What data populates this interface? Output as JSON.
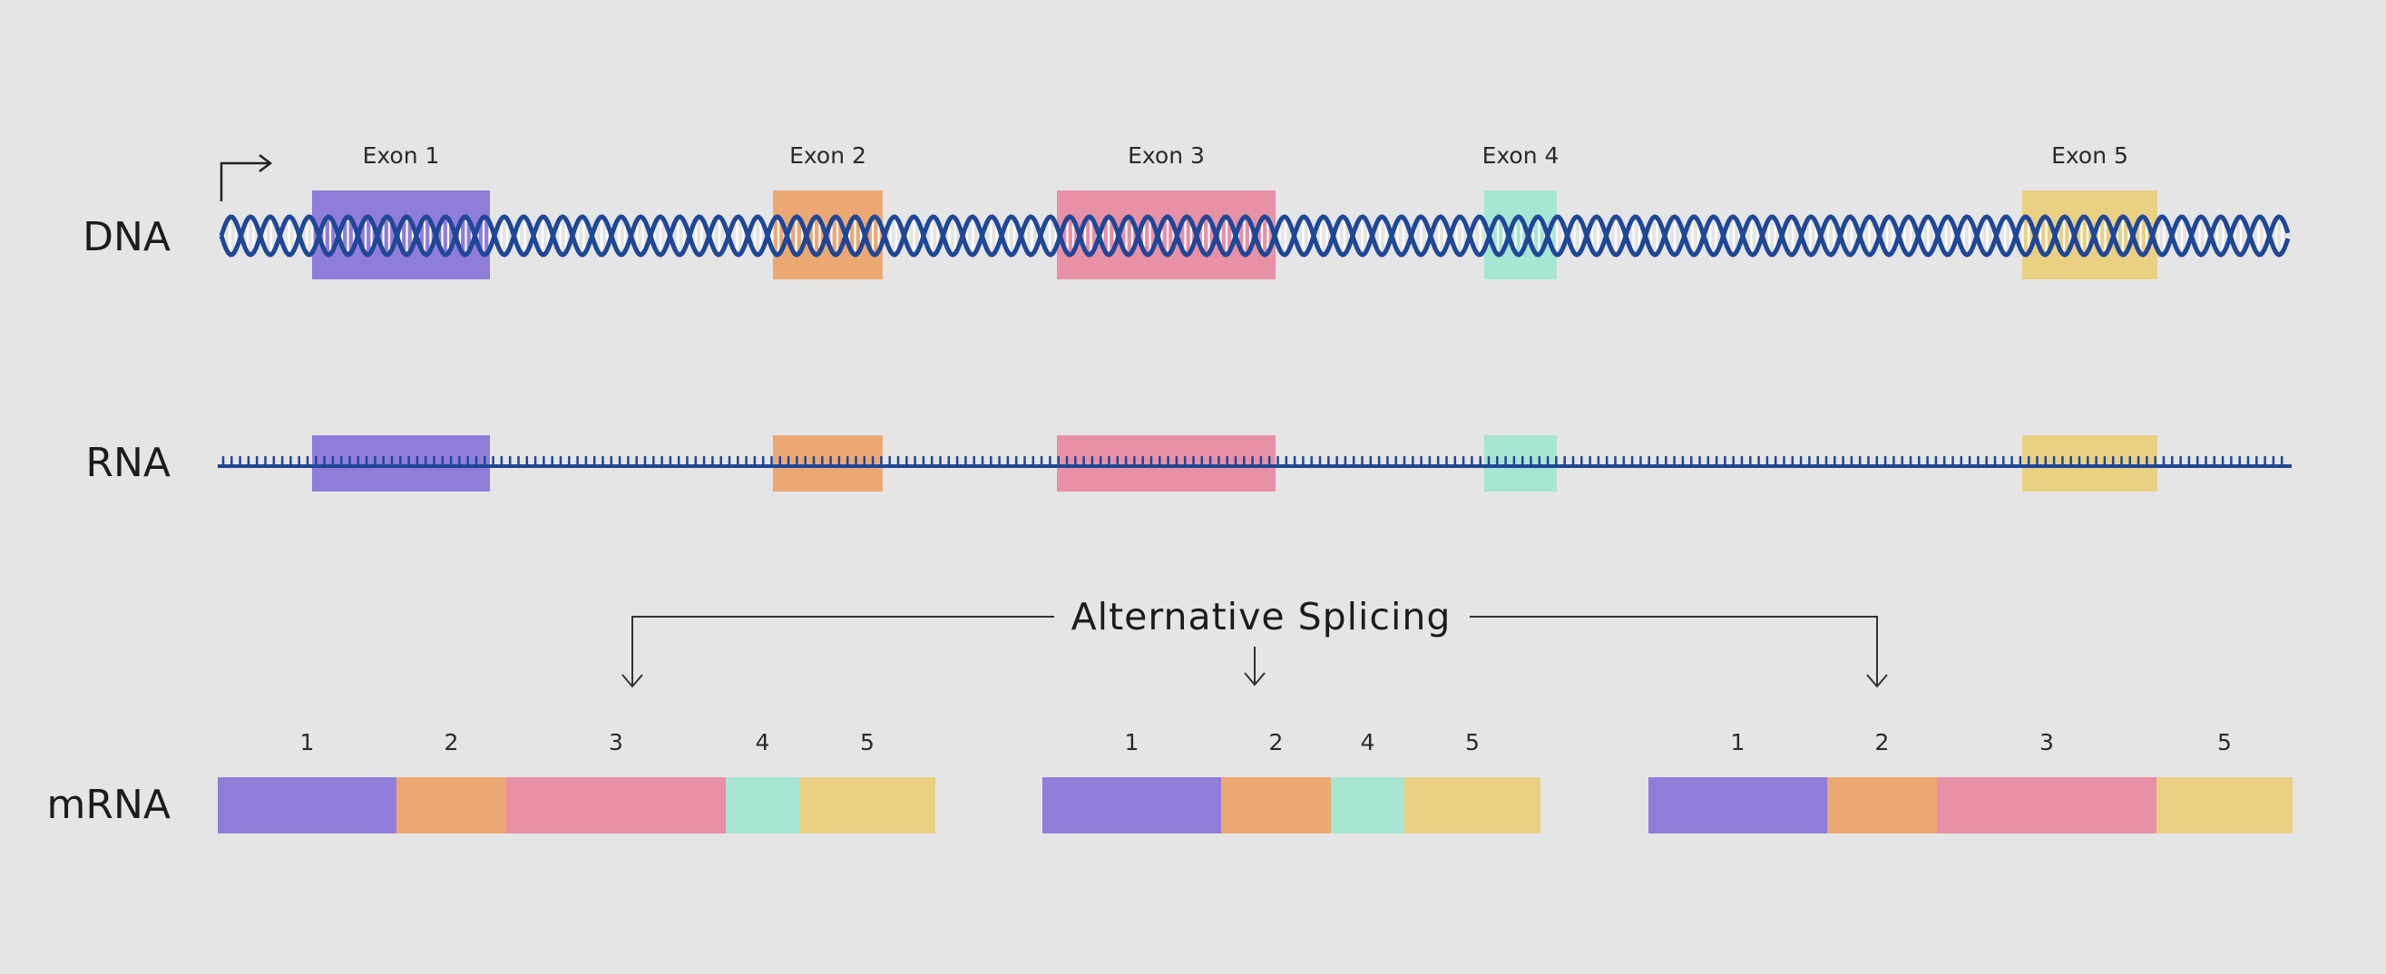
{
  "rows": {
    "dna": "DNA",
    "rna": "RNA",
    "mrna": "mRNA"
  },
  "exons": [
    {
      "id": 1,
      "label": "Exon 1",
      "color": "#907cd9"
    },
    {
      "id": 2,
      "label": "Exon 2",
      "color": "#eca873"
    },
    {
      "id": 3,
      "label": "Exon 3",
      "color": "#e890a6"
    },
    {
      "id": 4,
      "label": "Exon 4",
      "color": "#a6e6d3"
    },
    {
      "id": 5,
      "label": "Exon 5",
      "color": "#e9d083"
    }
  ],
  "splicing_title": "Alternative Splicing",
  "isoforms": [
    {
      "exons": [
        "1",
        "2",
        "3",
        "4",
        "5"
      ]
    },
    {
      "exons": [
        "1",
        "2",
        "4",
        "5"
      ]
    },
    {
      "exons": [
        "1",
        "2",
        "3",
        "5"
      ]
    }
  ],
  "colors": {
    "background": "#e5e5e5",
    "strand": "#1f4797",
    "text": "#1c1c1c"
  }
}
